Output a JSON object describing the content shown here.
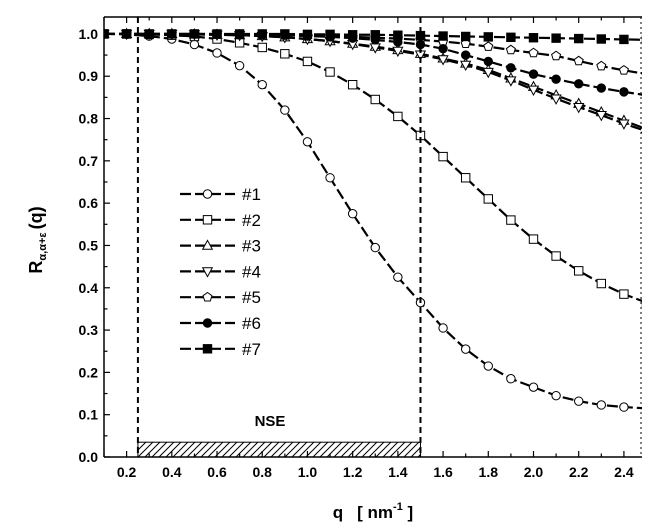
{
  "chart_data": {
    "type": "line",
    "xlabel": {
      "main": "q",
      "unit_open": "[ nm",
      "unit_sup": "-1",
      "unit_close": " ]"
    },
    "ylabel": {
      "main": "R",
      "sub": "α,α+ε",
      "tail": "(q)"
    },
    "xlim": [
      0.1,
      2.48
    ],
    "ylim": [
      0.0,
      1.04
    ],
    "x_ticks": [
      "0.2",
      "0.4",
      "0.6",
      "0.8",
      "1.0",
      "1.2",
      "1.4",
      "1.6",
      "1.8",
      "2.0",
      "2.2",
      "2.4"
    ],
    "y_ticks": [
      "0.0",
      "0.1",
      "0.2",
      "0.3",
      "0.4",
      "0.5",
      "0.6",
      "0.7",
      "0.8",
      "0.9",
      "1.0"
    ],
    "x": [
      0.1,
      0.2,
      0.3,
      0.4,
      0.5,
      0.6,
      0.7,
      0.8,
      0.9,
      1.0,
      1.1,
      1.2,
      1.3,
      1.4,
      1.5,
      1.6,
      1.7,
      1.8,
      1.9,
      2.0,
      2.1,
      2.2,
      2.3,
      2.4,
      2.5
    ],
    "series": [
      {
        "name": "#1",
        "marker": "circle-open",
        "values": [
          1.0,
          0.999,
          0.995,
          0.988,
          0.975,
          0.955,
          0.925,
          0.88,
          0.82,
          0.745,
          0.66,
          0.575,
          0.495,
          0.425,
          0.365,
          0.305,
          0.255,
          0.215,
          0.185,
          0.165,
          0.145,
          0.132,
          0.123,
          0.118,
          0.115
        ]
      },
      {
        "name": "#2",
        "marker": "square-open",
        "values": [
          1.0,
          1.0,
          0.999,
          0.997,
          0.994,
          0.988,
          0.979,
          0.968,
          0.953,
          0.935,
          0.91,
          0.88,
          0.845,
          0.805,
          0.76,
          0.71,
          0.66,
          0.61,
          0.56,
          0.515,
          0.475,
          0.44,
          0.41,
          0.385,
          0.365
        ]
      },
      {
        "name": "#3",
        "marker": "triangle-up-open",
        "values": [
          1.0,
          1.0,
          1.0,
          1.0,
          0.999,
          0.998,
          0.997,
          0.995,
          0.992,
          0.988,
          0.983,
          0.977,
          0.97,
          0.962,
          0.953,
          0.942,
          0.93,
          0.915,
          0.895,
          0.875,
          0.855,
          0.835,
          0.815,
          0.795,
          0.775
        ]
      },
      {
        "name": "#4",
        "marker": "triangle-down-open",
        "values": [
          1.0,
          1.0,
          1.0,
          1.0,
          0.999,
          0.998,
          0.997,
          0.995,
          0.992,
          0.988,
          0.983,
          0.976,
          0.968,
          0.96,
          0.951,
          0.94,
          0.927,
          0.91,
          0.89,
          0.868,
          0.847,
          0.827,
          0.808,
          0.788,
          0.77
        ]
      },
      {
        "name": "#5",
        "marker": "pentagon-open",
        "values": [
          1.0,
          1.0,
          1.0,
          1.0,
          1.0,
          0.999,
          0.999,
          0.998,
          0.997,
          0.996,
          0.995,
          0.993,
          0.991,
          0.989,
          0.986,
          0.982,
          0.977,
          0.97,
          0.962,
          0.955,
          0.948,
          0.936,
          0.924,
          0.914,
          0.905
        ]
      },
      {
        "name": "#6",
        "marker": "circle-filled",
        "values": [
          1.0,
          1.0,
          1.0,
          1.0,
          1.0,
          1.0,
          0.999,
          0.998,
          0.997,
          0.995,
          0.993,
          0.99,
          0.986,
          0.981,
          0.975,
          0.965,
          0.95,
          0.935,
          0.92,
          0.905,
          0.893,
          0.882,
          0.872,
          0.863,
          0.855
        ]
      },
      {
        "name": "#7",
        "marker": "square-filled",
        "values": [
          1.0,
          1.0,
          1.0,
          1.0,
          1.0,
          1.0,
          1.0,
          1.0,
          1.0,
          0.999,
          0.999,
          0.998,
          0.998,
          0.997,
          0.996,
          0.995,
          0.994,
          0.993,
          0.992,
          0.991,
          0.99,
          0.989,
          0.988,
          0.987,
          0.986
        ]
      }
    ],
    "annotations": {
      "vlines_x": [
        0.25,
        1.5
      ],
      "band": {
        "label": "NSE",
        "x_start": 0.25,
        "x_end": 1.5,
        "y_start": 0.0,
        "y_end": 0.035
      }
    },
    "grid": false,
    "legend_position": "left-center"
  }
}
